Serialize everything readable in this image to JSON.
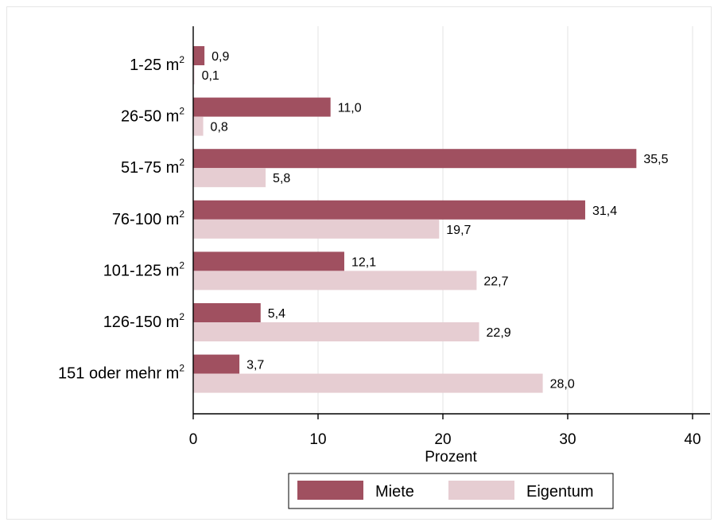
{
  "chart_data": {
    "type": "bar",
    "orientation": "horizontal",
    "categories": [
      "1-25 m",
      "26-50 m",
      "51-75 m",
      "76-100 m",
      "101-125 m",
      "126-150 m",
      "151 oder mehr m"
    ],
    "category_superscript": "2",
    "series": [
      {
        "name": "Miete",
        "values": [
          0.9,
          11.0,
          35.5,
          31.4,
          12.1,
          5.4,
          3.7
        ],
        "labels": [
          "0,9",
          "11,0",
          "35,5",
          "31,4",
          "12,1",
          "5,4",
          "3,7"
        ],
        "color": "#a05060"
      },
      {
        "name": "Eigentum",
        "values": [
          0.1,
          0.8,
          5.8,
          19.7,
          22.7,
          22.9,
          28.0
        ],
        "labels": [
          "0,1",
          "0,8",
          "5,8",
          "19,7",
          "22,7",
          "22,9",
          "28,0"
        ],
        "color": "#e6cdd2"
      }
    ],
    "xlabel": "Prozent",
    "xlim": [
      0,
      40
    ],
    "xticks": [
      0,
      10,
      20,
      30,
      40
    ],
    "xtick_labels": [
      "0",
      "10",
      "20",
      "30",
      "40"
    ],
    "grid": true,
    "legend_position": "bottom"
  }
}
